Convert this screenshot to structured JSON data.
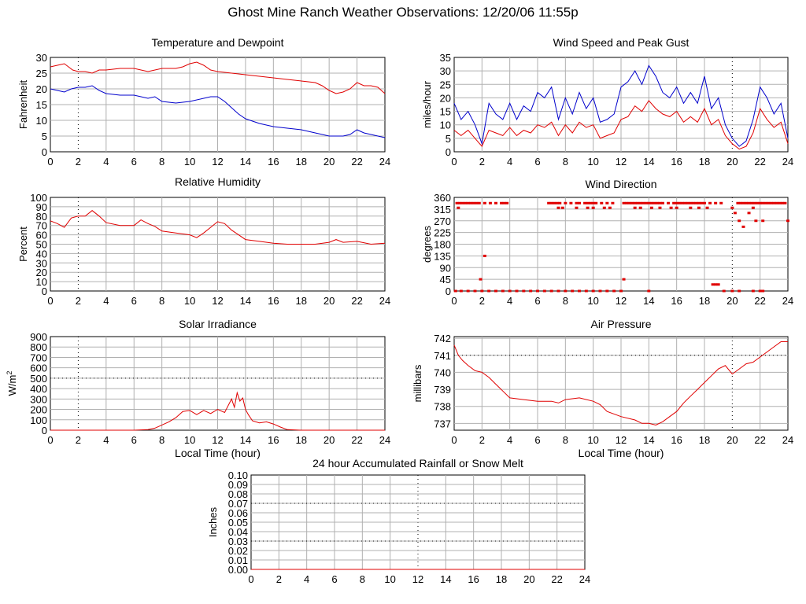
{
  "page": {
    "title": "Ghost Mine Ranch Weather Observations: 12/20/06 11:55p"
  },
  "chart_data": [
    {
      "id": "temp",
      "type": "line",
      "title": "Temperature and Dewpoint",
      "xlabel": "",
      "ylabel": "Fahrenheit",
      "xlim": [
        0,
        24
      ],
      "ylim": [
        0,
        30
      ],
      "xticks": [
        "0",
        "2",
        "4",
        "6",
        "8",
        "10",
        "12",
        "14",
        "16",
        "18",
        "20",
        "22",
        "24"
      ],
      "yticks": [
        "0",
        "5",
        "10",
        "15",
        "20",
        "25",
        "30"
      ],
      "grid": true,
      "series": [
        {
          "color": "#e00000",
          "x": [
            0,
            0.5,
            1,
            1.3,
            1.6,
            2,
            2.5,
            3,
            3.5,
            4,
            5,
            6,
            7,
            8,
            9,
            9.5,
            10,
            10.5,
            11,
            11.5,
            12,
            13,
            14,
            15,
            16,
            17,
            18,
            19,
            19.5,
            20,
            20.5,
            21,
            21.5,
            22,
            22.5,
            23,
            23.5,
            24
          ],
          "y": [
            27,
            27.5,
            28,
            27,
            26,
            25.5,
            25.5,
            25,
            26,
            26,
            26.5,
            26.5,
            25.5,
            26.5,
            26.5,
            27,
            28,
            28.5,
            27.5,
            26,
            25.5,
            25,
            24.5,
            24,
            23.5,
            23,
            22.5,
            22,
            21,
            19.5,
            18.5,
            19,
            20,
            22,
            21,
            21,
            20.5,
            18.5
          ]
        },
        {
          "color": "#0000cc",
          "x": [
            0,
            0.5,
            1,
            1.5,
            2,
            2.5,
            3,
            3.5,
            4,
            5,
            6,
            7,
            7.5,
            8,
            9,
            10,
            11,
            11.5,
            12,
            12.5,
            13,
            13.5,
            14,
            15,
            16,
            17,
            18,
            19,
            20,
            21,
            21.5,
            22,
            22.5,
            23,
            23.5,
            24
          ],
          "y": [
            20,
            19.5,
            19,
            20,
            20.5,
            20.5,
            21,
            19.5,
            18.5,
            18,
            18,
            17,
            17.5,
            16,
            15.5,
            16,
            17,
            17.5,
            17.5,
            16,
            14,
            12,
            10.5,
            9,
            8,
            7.5,
            7,
            6,
            5,
            5,
            5.5,
            7,
            6,
            5.5,
            5,
            4.5
          ]
        }
      ]
    },
    {
      "id": "wind",
      "type": "line",
      "title": "Wind Speed and Peak Gust",
      "xlabel": "",
      "ylabel": "miles/hour",
      "xlim": [
        0,
        24
      ],
      "ylim": [
        0,
        35
      ],
      "xticks": [
        "0",
        "2",
        "4",
        "6",
        "8",
        "10",
        "12",
        "14",
        "16",
        "18",
        "20",
        "22",
        "24"
      ],
      "yticks": [
        "0",
        "5",
        "10",
        "15",
        "20",
        "25",
        "30",
        "35"
      ],
      "grid": true,
      "series": [
        {
          "color": "#0000cc",
          "x": [
            0,
            0.5,
            1,
            1.5,
            2,
            2.5,
            3,
            3.5,
            4,
            4.5,
            5,
            5.5,
            6,
            6.5,
            7,
            7.5,
            8,
            8.5,
            9,
            9.5,
            10,
            10.5,
            11,
            11.5,
            12,
            12.5,
            13,
            13.5,
            14,
            14.5,
            15,
            15.5,
            16,
            16.5,
            17,
            17.5,
            18,
            18.5,
            19,
            19.5,
            20,
            20.5,
            21,
            21.5,
            22,
            22.5,
            23,
            23.5,
            24
          ],
          "y": [
            18,
            12,
            15,
            10,
            3,
            18,
            14,
            12,
            18,
            12,
            17,
            15,
            22,
            20,
            24,
            12,
            20,
            14,
            22,
            16,
            20,
            11,
            12,
            14,
            24,
            26,
            30,
            25,
            32,
            28,
            22,
            20,
            24,
            18,
            22,
            18,
            28,
            16,
            20,
            10,
            5,
            2,
            4,
            12,
            24,
            20,
            14,
            18,
            5
          ]
        },
        {
          "color": "#e00000",
          "x": [
            0,
            0.5,
            1,
            1.5,
            2,
            2.5,
            3,
            3.5,
            4,
            4.5,
            5,
            5.5,
            6,
            6.5,
            7,
            7.5,
            8,
            8.5,
            9,
            9.5,
            10,
            10.5,
            11,
            11.5,
            12,
            12.5,
            13,
            13.5,
            14,
            14.5,
            15,
            15.5,
            16,
            16.5,
            17,
            17.5,
            18,
            18.5,
            19,
            19.5,
            20,
            20.5,
            21,
            21.5,
            22,
            22.5,
            23,
            23.5,
            24
          ],
          "y": [
            8,
            6,
            8,
            5,
            2,
            8,
            7,
            6,
            9,
            6,
            8,
            7,
            10,
            9,
            11,
            6,
            10,
            7,
            11,
            9,
            10,
            5,
            6,
            7,
            12,
            13,
            17,
            15,
            19,
            16,
            14,
            13,
            15,
            11,
            13,
            11,
            16,
            10,
            12,
            6,
            3,
            1,
            2,
            7,
            16,
            12,
            9,
            11,
            3
          ]
        }
      ]
    },
    {
      "id": "rh",
      "type": "line",
      "title": "Relative Humidity",
      "xlabel": "",
      "ylabel": "Percent",
      "xlim": [
        0,
        24
      ],
      "ylim": [
        0,
        100
      ],
      "xticks": [
        "0",
        "2",
        "4",
        "6",
        "8",
        "10",
        "12",
        "14",
        "16",
        "18",
        "20",
        "22",
        "24"
      ],
      "yticks": [
        "0",
        "10",
        "20",
        "30",
        "40",
        "50",
        "60",
        "70",
        "80",
        "90",
        "100"
      ],
      "grid": true,
      "series": [
        {
          "color": "#e00000",
          "x": [
            0,
            0.5,
            1,
            1.5,
            2,
            2.5,
            3,
            3.5,
            4,
            5,
            6,
            6.5,
            7,
            7.5,
            8,
            9,
            10,
            10.5,
            11,
            11.5,
            12,
            12.5,
            13,
            13.5,
            14,
            15,
            16,
            17,
            18,
            19,
            20,
            20.5,
            21,
            22,
            23,
            24
          ],
          "y": [
            75,
            72,
            68,
            78,
            80,
            80,
            86,
            80,
            73,
            70,
            70,
            76,
            72,
            69,
            64,
            62,
            60,
            57,
            62,
            68,
            74,
            72,
            65,
            60,
            55,
            53,
            51,
            50,
            50,
            50,
            52,
            55,
            52,
            53,
            50,
            51
          ]
        }
      ]
    },
    {
      "id": "dir",
      "type": "scatter",
      "title": "Wind Direction",
      "xlabel": "",
      "ylabel": "degrees",
      "xlim": [
        0,
        24
      ],
      "ylim": [
        0,
        360
      ],
      "xticks": [
        "0",
        "2",
        "4",
        "6",
        "8",
        "10",
        "12",
        "14",
        "16",
        "18",
        "20",
        "22",
        "24"
      ],
      "yticks": [
        "0",
        "45",
        "90",
        "135",
        "180",
        "225",
        "270",
        "315",
        "360"
      ],
      "grid": true,
      "series": [
        {
          "color": "#e00000",
          "x": [
            0.2,
            0.4,
            0.6,
            0.8,
            1,
            1.2,
            1.4,
            1.6,
            1.8,
            2.2,
            2.6,
            3.0,
            3.4,
            3.6,
            3.8,
            6.8,
            7.0,
            7.2,
            7.4,
            7.6,
            8.0,
            8.4,
            8.8,
            9.0,
            9.4,
            9.6,
            9.8,
            10.0,
            10.2,
            10.6,
            11.0,
            11.4,
            12.2,
            12.4,
            12.6,
            12.8,
            13.0,
            13.2,
            13.4,
            13.6,
            13.8,
            14.0,
            14.2,
            14.4,
            14.6,
            14.8,
            15.0,
            15.4,
            15.8,
            16.0,
            16.2,
            16.4,
            16.6,
            16.8,
            17.0,
            17.2,
            17.4,
            17.6,
            17.8,
            18.0,
            18.4,
            18.8,
            19.2,
            20.4,
            20.6,
            20.8,
            21.0,
            21.2,
            21.4,
            21.6,
            21.8,
            22.0,
            22.2,
            22.4,
            22.6,
            22.8,
            23.0,
            23.2,
            23.4,
            23.6,
            23.8,
            0.1,
            0.5,
            1.0,
            1.5,
            2.0,
            2.5,
            3.0,
            3.5,
            4.0,
            4.5,
            5.0,
            5.5,
            6.0,
            6.5,
            7.0,
            7.5,
            8.0,
            8.5,
            9.0,
            9.5,
            10.0,
            10.5,
            11.0,
            11.5,
            12.0,
            14.0,
            18.6,
            18.8,
            19.0,
            19.4,
            20.0,
            20.5,
            21.5,
            22.0,
            22.2,
            0.3,
            1.9,
            2.2,
            7.5,
            7.8,
            8.8,
            9.6,
            10.0,
            10.8,
            11.2,
            12.2,
            13.0,
            13.4,
            14.2,
            14.8,
            15.6,
            16.0,
            17.0,
            17.6,
            18.2,
            20.0,
            20.2,
            20.5,
            20.8,
            21.2,
            21.5,
            21.7,
            22.2,
            24.0
          ],
          "y": [
            338,
            338,
            338,
            338,
            338,
            338,
            338,
            338,
            338,
            338,
            338,
            338,
            338,
            338,
            338,
            338,
            338,
            338,
            338,
            338,
            338,
            338,
            338,
            338,
            338,
            338,
            338,
            338,
            338,
            338,
            338,
            338,
            338,
            338,
            338,
            338,
            338,
            338,
            338,
            338,
            338,
            338,
            338,
            338,
            338,
            338,
            338,
            338,
            338,
            338,
            338,
            338,
            338,
            338,
            338,
            338,
            338,
            338,
            338,
            338,
            338,
            338,
            338,
            338,
            338,
            338,
            338,
            338,
            338,
            338,
            338,
            338,
            338,
            338,
            338,
            338,
            338,
            338,
            338,
            338,
            338,
            0,
            0,
            0,
            0,
            0,
            0,
            0,
            0,
            0,
            0,
            0,
            0,
            0,
            0,
            0,
            0,
            0,
            0,
            0,
            0,
            0,
            0,
            0,
            0,
            0,
            0,
            25,
            25,
            25,
            0,
            0,
            0,
            0,
            0,
            0,
            320,
            45,
            135,
            320,
            320,
            320,
            320,
            320,
            320,
            320,
            45,
            320,
            320,
            320,
            320,
            320,
            320,
            320,
            320,
            320,
            320,
            300,
            270,
            247,
            300,
            320,
            270,
            270,
            270
          ]
        }
      ]
    },
    {
      "id": "solar",
      "type": "line",
      "title": "Solar Irradiance",
      "xlabel": "Local Time (hour)",
      "ylabel": "W/m",
      "ylabel_sup": "2",
      "xlim": [
        0,
        24
      ],
      "ylim": [
        0,
        900
      ],
      "xticks": [
        "0",
        "2",
        "4",
        "6",
        "8",
        "10",
        "12",
        "14",
        "16",
        "18",
        "20",
        "22",
        "24"
      ],
      "yticks": [
        "0",
        "100",
        "200",
        "300",
        "400",
        "500",
        "600",
        "700",
        "800",
        "900"
      ],
      "grid": true,
      "series": [
        {
          "color": "#e00000",
          "x": [
            0,
            6,
            7,
            7.5,
            8,
            8.5,
            9,
            9.5,
            10,
            10.5,
            11,
            11.5,
            12,
            12.5,
            13,
            13.2,
            13.4,
            13.6,
            13.8,
            14,
            14.2,
            14.5,
            15,
            15.5,
            16,
            16.5,
            17,
            18,
            24
          ],
          "y": [
            0,
            0,
            5,
            20,
            50,
            80,
            120,
            180,
            190,
            150,
            190,
            160,
            200,
            170,
            300,
            220,
            360,
            280,
            310,
            200,
            150,
            90,
            70,
            80,
            60,
            30,
            5,
            0,
            0
          ]
        }
      ]
    },
    {
      "id": "press",
      "type": "line",
      "title": "Air Pressure",
      "xlabel": "Local Time (hour)",
      "ylabel": "millibars",
      "xlim": [
        0,
        24
      ],
      "ylim": [
        736.6,
        742.1
      ],
      "xticks": [
        "0",
        "2",
        "4",
        "6",
        "8",
        "10",
        "12",
        "14",
        "16",
        "18",
        "20",
        "22",
        "24"
      ],
      "ytick_values": [
        737,
        738,
        739,
        740,
        741,
        742
      ],
      "yticks": [
        "737",
        "738",
        "739",
        "740",
        "741",
        "742"
      ],
      "grid": true,
      "series": [
        {
          "color": "#e00000",
          "x": [
            0,
            0.3,
            0.6,
            1,
            1.5,
            2,
            2.5,
            3,
            3.5,
            4,
            5,
            6,
            7,
            7.5,
            8,
            9,
            10,
            10.5,
            11,
            12,
            13,
            13.5,
            14,
            14.5,
            15,
            15.5,
            16,
            16.5,
            17,
            17.5,
            18,
            18.5,
            19,
            19.5,
            20,
            20.5,
            21,
            21.5,
            22,
            22.5,
            23,
            23.5,
            24
          ],
          "y": [
            741.6,
            741,
            740.7,
            740.4,
            740.1,
            740,
            739.7,
            739.3,
            738.9,
            738.5,
            738.4,
            738.3,
            738.3,
            738.2,
            738.4,
            738.5,
            738.3,
            738.1,
            737.7,
            737.4,
            737.2,
            737,
            737,
            736.9,
            737.1,
            737.4,
            737.7,
            738.2,
            738.6,
            739,
            739.4,
            739.8,
            740.2,
            740.4,
            739.9,
            740.2,
            740.5,
            740.6,
            740.9,
            741.2,
            741.5,
            741.8,
            741.8
          ]
        }
      ]
    },
    {
      "id": "rain",
      "type": "line",
      "title": "24 hour Accumulated Rainfall or Snow Melt",
      "xlabel": "",
      "ylabel": "Inches",
      "xlim": [
        0,
        24
      ],
      "ylim": [
        0,
        0.1
      ],
      "xticks": [
        "0",
        "2",
        "4",
        "6",
        "8",
        "10",
        "12",
        "14",
        "16",
        "18",
        "20",
        "22",
        "24"
      ],
      "yticks": [
        "0.00",
        "0.01",
        "0.02",
        "0.03",
        "0.04",
        "0.05",
        "0.06",
        "0.07",
        "0.08",
        "0.09",
        "0.10"
      ],
      "grid": true,
      "series": [
        {
          "color": "#e00000",
          "x": [
            0,
            24
          ],
          "y": [
            0,
            0
          ]
        }
      ]
    }
  ]
}
